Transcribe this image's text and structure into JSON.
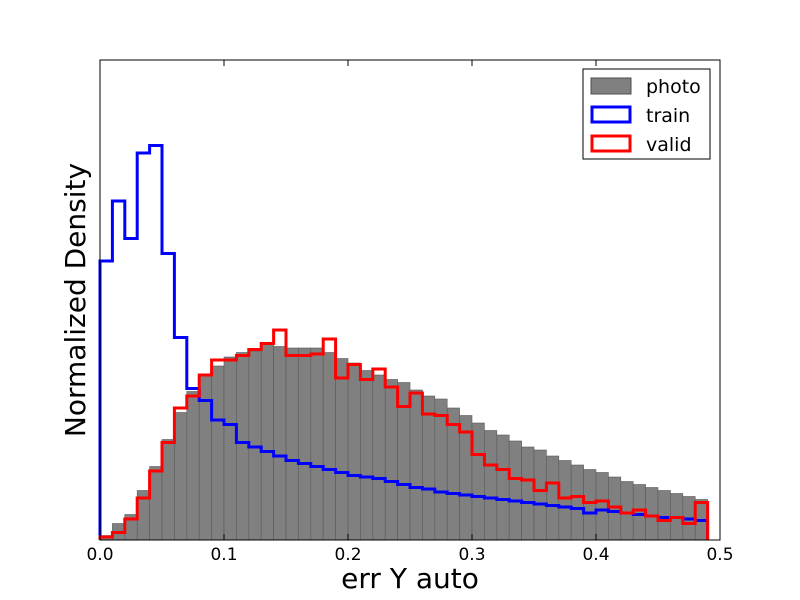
{
  "chart_data": {
    "type": "histogram",
    "xlabel": "err Y auto",
    "ylabel": "Normalized Density",
    "xlim": [
      0.0,
      0.5
    ],
    "ylim": [
      0,
      3.2
    ],
    "x_ticks": [
      "0.0",
      "0.1",
      "0.2",
      "0.3",
      "0.4",
      "0.5"
    ],
    "bin_edges_start": 0.0,
    "bin_width": 0.01,
    "legend": {
      "position": "top-right",
      "entries": [
        "photo",
        "train",
        "valid"
      ]
    },
    "series": [
      {
        "name": "photo",
        "style": "filled",
        "color": "#808080",
        "values": [
          0.03,
          0.11,
          0.17,
          0.33,
          0.49,
          0.67,
          0.85,
          0.99,
          1.1,
          1.16,
          1.22,
          1.25,
          1.26,
          1.31,
          1.29,
          1.28,
          1.28,
          1.28,
          1.25,
          1.21,
          1.18,
          1.13,
          1.1,
          1.07,
          1.05,
          1.0,
          0.96,
          0.94,
          0.88,
          0.83,
          0.78,
          0.73,
          0.7,
          0.66,
          0.62,
          0.6,
          0.56,
          0.53,
          0.5,
          0.47,
          0.45,
          0.42,
          0.39,
          0.37,
          0.35,
          0.33,
          0.31,
          0.29,
          0.27
        ]
      },
      {
        "name": "train",
        "style": "step",
        "color": "#0000ff",
        "values": [
          1.86,
          2.26,
          2.01,
          2.58,
          2.63,
          1.91,
          1.35,
          1.01,
          0.93,
          0.8,
          0.77,
          0.65,
          0.62,
          0.59,
          0.56,
          0.53,
          0.51,
          0.49,
          0.47,
          0.45,
          0.43,
          0.42,
          0.41,
          0.39,
          0.37,
          0.35,
          0.34,
          0.32,
          0.31,
          0.3,
          0.29,
          0.28,
          0.27,
          0.26,
          0.25,
          0.24,
          0.23,
          0.22,
          0.21,
          0.18,
          0.2,
          0.19,
          0.18,
          0.17,
          0.16,
          0.15,
          0.15,
          0.14,
          0.13
        ]
      },
      {
        "name": "valid",
        "style": "step",
        "color": "#ff0000",
        "values": [
          0.02,
          0.05,
          0.14,
          0.28,
          0.46,
          0.65,
          0.88,
          0.96,
          1.1,
          1.2,
          1.2,
          1.23,
          1.27,
          1.31,
          1.4,
          1.23,
          1.23,
          1.24,
          1.34,
          1.08,
          1.17,
          1.07,
          1.14,
          1.02,
          0.89,
          0.98,
          0.84,
          0.83,
          0.77,
          0.72,
          0.57,
          0.5,
          0.47,
          0.41,
          0.4,
          0.33,
          0.38,
          0.28,
          0.29,
          0.25,
          0.26,
          0.22,
          0.18,
          0.2,
          0.16,
          0.13,
          0.15,
          0.11,
          0.25
        ]
      }
    ]
  }
}
